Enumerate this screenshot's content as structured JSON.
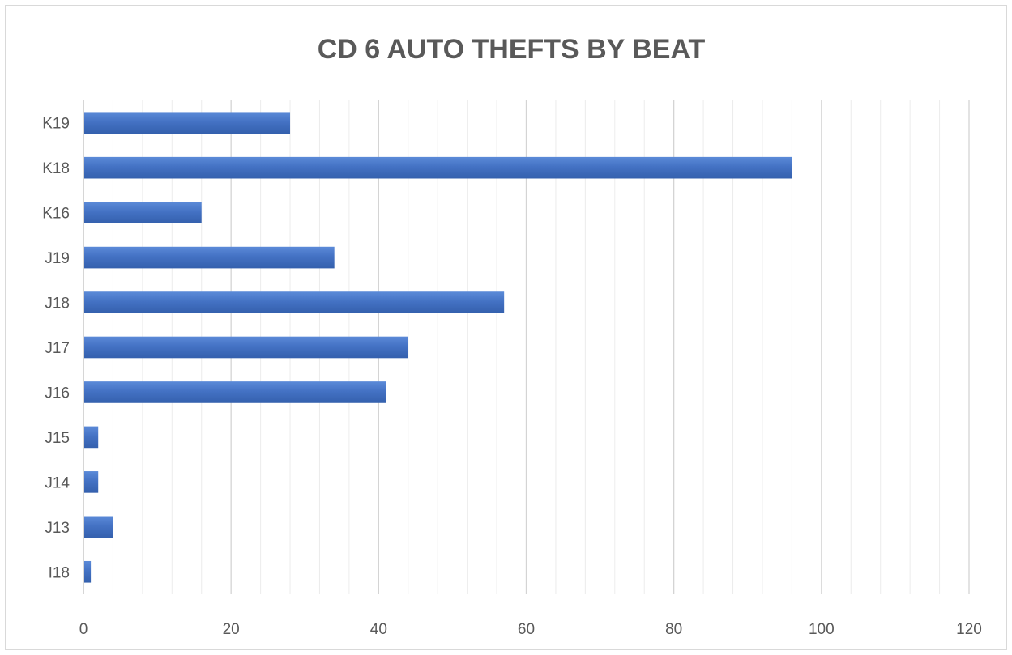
{
  "chart_data": {
    "type": "bar",
    "orientation": "horizontal",
    "title": "CD 6 AUTO THEFTS BY BEAT",
    "xlabel": "",
    "ylabel": "",
    "categories": [
      "K19",
      "K18",
      "K16",
      "J19",
      "J18",
      "J17",
      "J16",
      "J15",
      "J14",
      "J13",
      "I18"
    ],
    "values": [
      28,
      96,
      16,
      34,
      57,
      44,
      41,
      2,
      2,
      4,
      1
    ],
    "xlim": [
      0,
      120
    ],
    "x_ticks": [
      0,
      20,
      40,
      60,
      80,
      100,
      120
    ],
    "major_grid": true,
    "minor_grid": true,
    "legend": "none",
    "bar_color": "#4472C4"
  }
}
